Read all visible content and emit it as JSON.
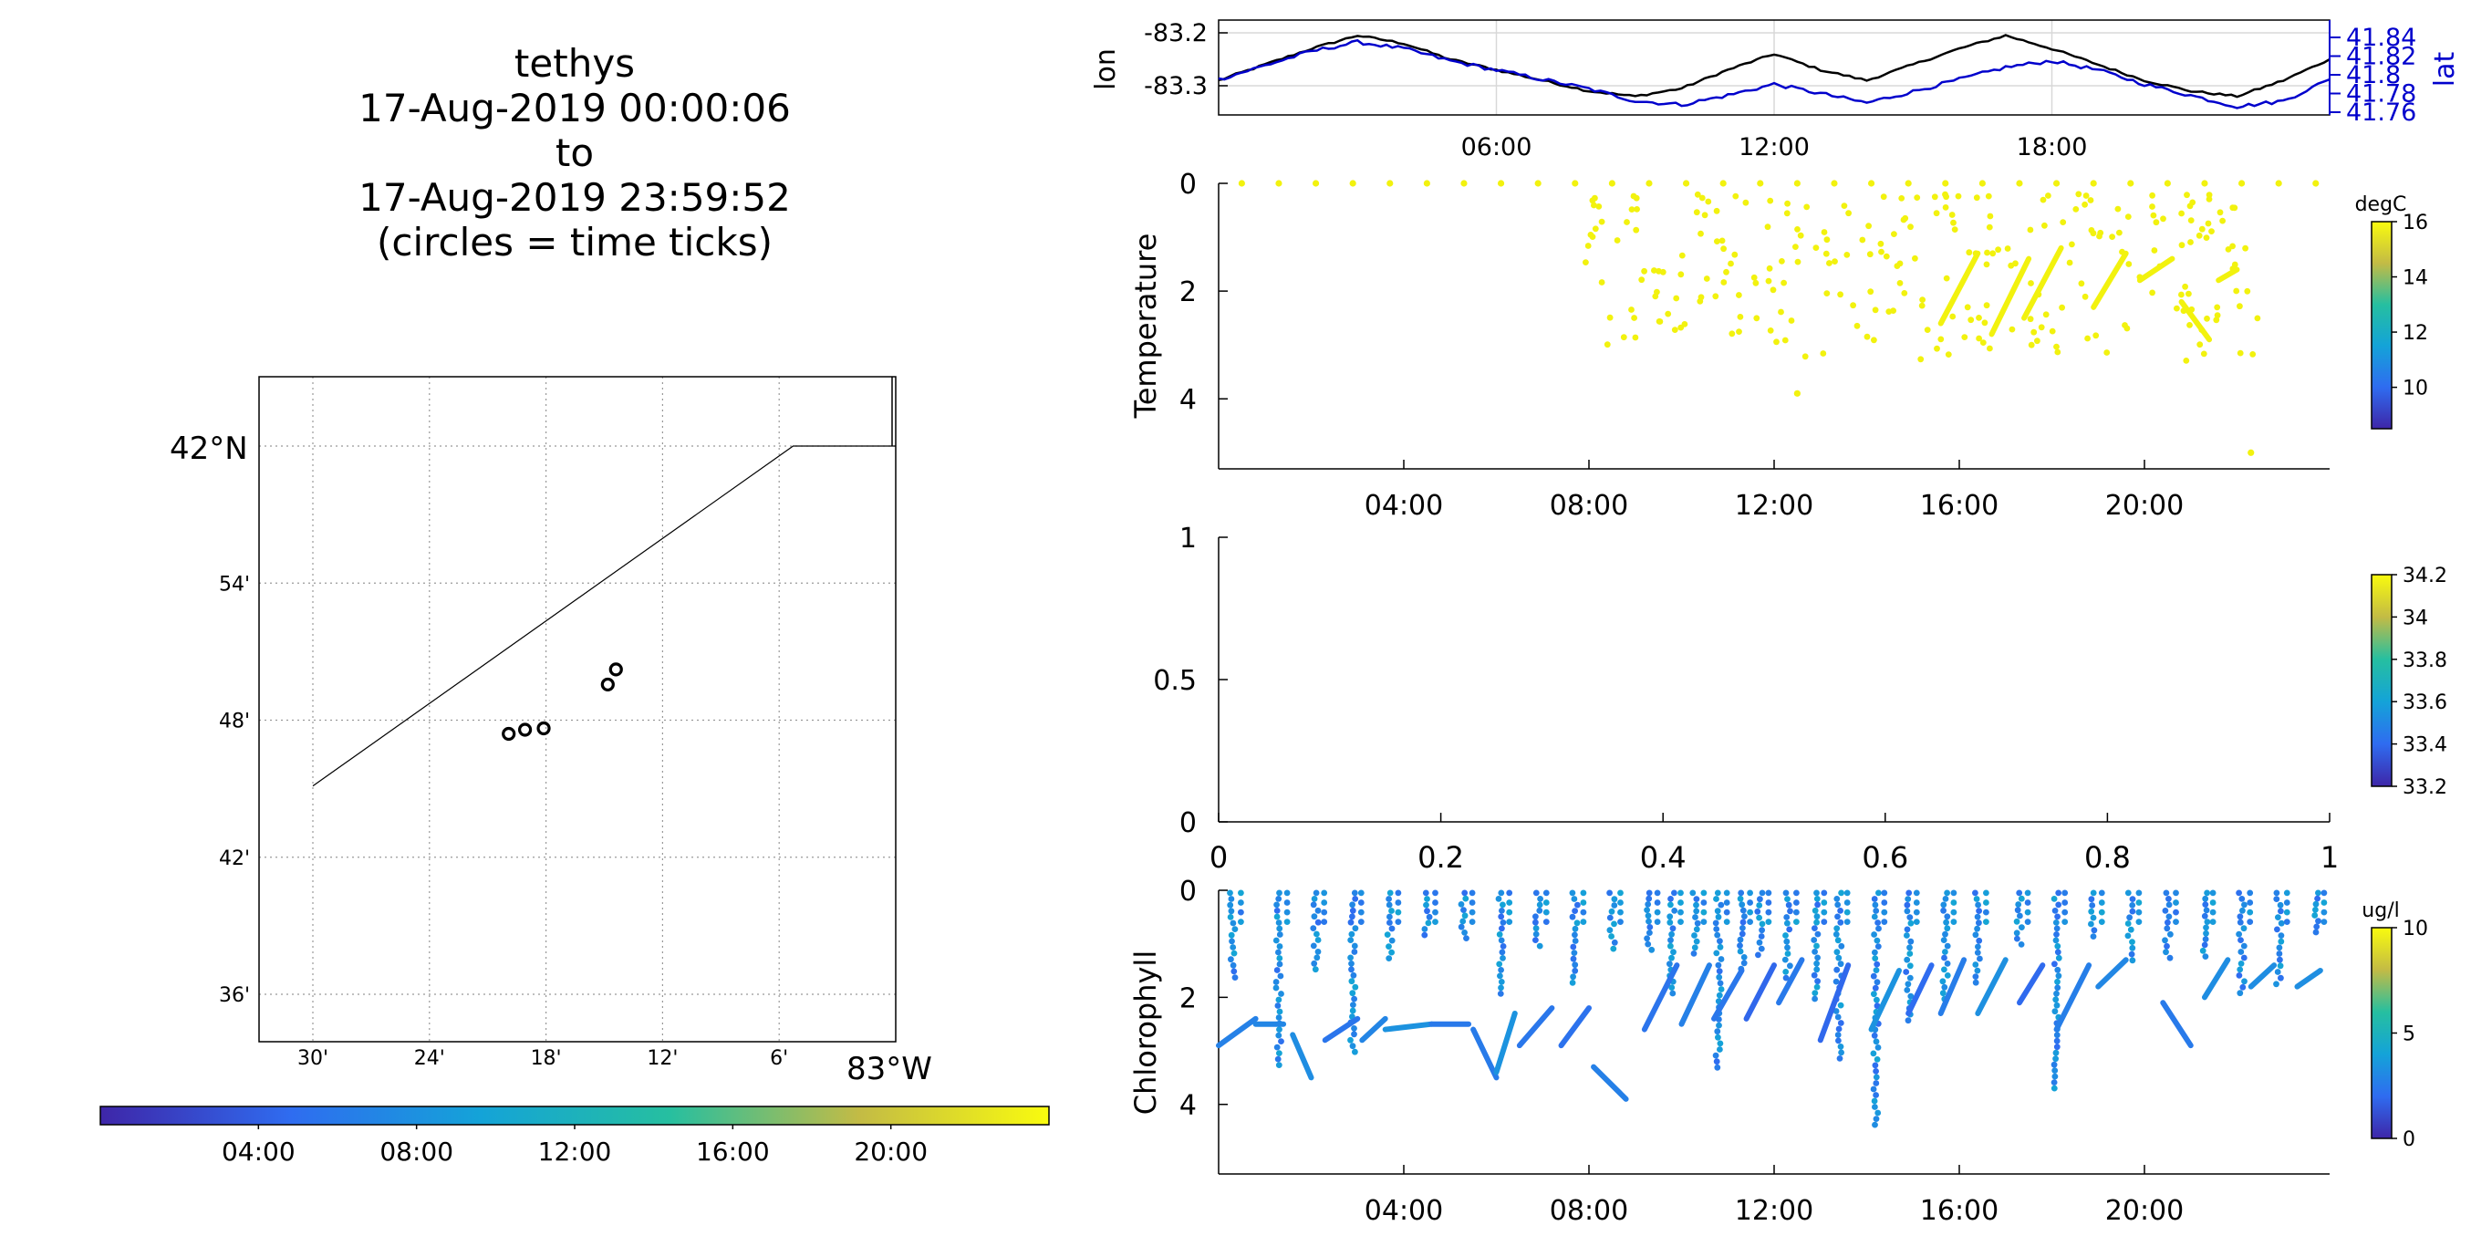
{
  "title_lines": [
    "tethys",
    "17-Aug-2019 00:00:06",
    "to",
    "17-Aug-2019 23:59:52",
    "(circles = time ticks)"
  ],
  "colors": {
    "lon": "#000000",
    "lat": "#0000cc",
    "axis": "#000000",
    "grid": "#d8d8d8"
  },
  "chart_data": [
    {
      "type": "line",
      "panel": "lon-lat",
      "x": [
        "00:00",
        "01:00",
        "02:00",
        "03:00",
        "04:00",
        "05:00",
        "06:00",
        "07:00",
        "08:00",
        "09:00",
        "10:00",
        "11:00",
        "12:00",
        "13:00",
        "14:00",
        "15:00",
        "16:00",
        "17:00",
        "18:00",
        "19:00",
        "20:00",
        "21:00",
        "22:00",
        "23:00",
        "24:00"
      ],
      "series": [
        {
          "name": "lon",
          "axis": "left",
          "values": [
            -83.29,
            -83.26,
            -83.23,
            -83.205,
            -83.22,
            -83.25,
            -83.27,
            -83.29,
            -83.31,
            -83.32,
            -83.305,
            -83.27,
            -83.24,
            -83.27,
            -83.29,
            -83.26,
            -83.23,
            -83.205,
            -83.23,
            -83.26,
            -83.29,
            -83.31,
            -83.32,
            -83.29,
            -83.25
          ]
        },
        {
          "name": "lat",
          "axis": "right",
          "values": [
            41.795,
            41.81,
            41.825,
            41.835,
            41.828,
            41.815,
            41.805,
            41.795,
            41.785,
            41.772,
            41.768,
            41.778,
            41.79,
            41.78,
            41.77,
            41.782,
            41.795,
            41.808,
            41.815,
            41.805,
            41.79,
            41.778,
            41.766,
            41.772,
            41.795
          ]
        }
      ],
      "ylabel": "lon",
      "ylabel_right": "lat",
      "yticks": [
        "-83.2",
        "-83.3"
      ],
      "yticks_right": [
        "41.84",
        "41.82",
        "41.8",
        "41.78",
        "41.76"
      ],
      "xticks": [
        "06:00",
        "12:00",
        "18:00"
      ],
      "grid": true
    },
    {
      "type": "scatter",
      "panel": "temperature",
      "ylabel": "Temperature",
      "yticks": [
        "0",
        "2",
        "4"
      ],
      "ylim": [
        0,
        5.3
      ],
      "y_reversed": true,
      "xticks": [
        "04:00",
        "08:00",
        "12:00",
        "16:00",
        "20:00"
      ],
      "colorbar": {
        "label": "degC",
        "ticks": [
          "16",
          "14",
          "12",
          "10"
        ],
        "range": [
          8.5,
          16
        ]
      },
      "surface_points_x_hours": [
        0.5,
        1.3,
        2.1,
        2.9,
        3.7,
        4.5,
        5.3,
        6.1,
        6.9,
        7.7,
        8.5,
        9.3,
        10.1,
        10.9,
        11.7,
        12.5,
        13.3,
        14.1,
        14.9,
        15.7,
        16.5,
        17.3,
        18.1,
        18.9,
        19.7,
        20.5,
        21.3,
        22.1,
        22.9,
        23.7
      ],
      "deep_scatter_x_range": [
        7.9,
        22.5
      ],
      "deep_scatter_y_range": [
        0.2,
        3.3
      ],
      "outliers": [
        {
          "x": 12.5,
          "y": 3.9
        },
        {
          "x": 22.3,
          "y": 5.0
        }
      ],
      "profile_segments": [
        {
          "x0": 15.6,
          "y0": 2.6,
          "x1": 16.4,
          "y1": 1.3
        },
        {
          "x0": 16.7,
          "y0": 2.8,
          "x1": 17.5,
          "y1": 1.4
        },
        {
          "x0": 17.4,
          "y0": 2.5,
          "x1": 18.2,
          "y1": 1.2
        },
        {
          "x0": 18.9,
          "y0": 2.3,
          "x1": 19.6,
          "y1": 1.3
        },
        {
          "x0": 19.9,
          "y0": 1.8,
          "x1": 20.6,
          "y1": 1.4
        },
        {
          "x0": 20.8,
          "y0": 2.2,
          "x1": 21.4,
          "y1": 2.9
        },
        {
          "x0": 21.6,
          "y0": 1.8,
          "x1": 22.0,
          "y1": 1.6
        }
      ]
    },
    {
      "type": "scatter",
      "panel": "salinity",
      "xlim": [
        0,
        1
      ],
      "ylim": [
        0,
        1
      ],
      "xticks": [
        "0",
        "0.2",
        "0.4",
        "0.6",
        "0.8",
        "1"
      ],
      "yticks": [
        "1",
        "0.5",
        "0"
      ],
      "colorbar": {
        "ticks": [
          "34.2",
          "34",
          "33.8",
          "33.6",
          "33.4",
          "33.2"
        ],
        "range": [
          33.2,
          34.2
        ]
      }
    },
    {
      "type": "scatter",
      "panel": "chlorophyll",
      "ylabel": "Chlorophyll",
      "yticks": [
        "0",
        "2",
        "4"
      ],
      "ylim": [
        0,
        5.3
      ],
      "y_reversed": true,
      "xticks": [
        "04:00",
        "08:00",
        "12:00",
        "16:00",
        "20:00"
      ],
      "colorbar": {
        "label": "ug/l",
        "ticks": [
          "10",
          "5",
          "0"
        ],
        "range": [
          0,
          10
        ]
      },
      "profile_x_hours": [
        0.3,
        1.3,
        2.1,
        2.9,
        3.7,
        4.5,
        5.3,
        6.1,
        6.9,
        7.7,
        8.5,
        9.3,
        9.8,
        10.3,
        10.8,
        11.3,
        11.7,
        12.3,
        12.9,
        13.4,
        14.2,
        14.9,
        15.7,
        16.4,
        17.3,
        18.1,
        18.9,
        19.7,
        20.5,
        21.3,
        22.1,
        22.9,
        23.7
      ],
      "profile_segments": [
        {
          "x0": 0.0,
          "y0": 2.9,
          "x1": 0.8,
          "y1": 2.4
        },
        {
          "x0": 0.8,
          "y0": 2.5,
          "x1": 1.4,
          "y1": 2.5
        },
        {
          "x0": 1.6,
          "y0": 2.7,
          "x1": 2.0,
          "y1": 3.5
        },
        {
          "x0": 2.3,
          "y0": 2.8,
          "x1": 3.0,
          "y1": 2.4
        },
        {
          "x0": 3.1,
          "y0": 2.8,
          "x1": 3.6,
          "y1": 2.4
        },
        {
          "x0": 3.6,
          "y0": 2.6,
          "x1": 4.6,
          "y1": 2.5
        },
        {
          "x0": 4.6,
          "y0": 2.5,
          "x1": 5.4,
          "y1": 2.5
        },
        {
          "x0": 5.5,
          "y0": 2.6,
          "x1": 6.0,
          "y1": 3.5
        },
        {
          "x0": 6.0,
          "y0": 3.4,
          "x1": 6.4,
          "y1": 2.3
        },
        {
          "x0": 6.5,
          "y0": 2.9,
          "x1": 7.2,
          "y1": 2.2
        },
        {
          "x0": 7.4,
          "y0": 2.9,
          "x1": 8.0,
          "y1": 2.2
        },
        {
          "x0": 8.1,
          "y0": 3.3,
          "x1": 8.8,
          "y1": 3.9
        },
        {
          "x0": 9.2,
          "y0": 2.6,
          "x1": 9.9,
          "y1": 1.4
        },
        {
          "x0": 10.0,
          "y0": 2.5,
          "x1": 10.6,
          "y1": 1.4
        },
        {
          "x0": 10.7,
          "y0": 2.4,
          "x1": 11.3,
          "y1": 1.5
        },
        {
          "x0": 11.4,
          "y0": 2.4,
          "x1": 12.0,
          "y1": 1.4
        },
        {
          "x0": 12.1,
          "y0": 2.1,
          "x1": 12.6,
          "y1": 1.3
        },
        {
          "x0": 13.0,
          "y0": 2.8,
          "x1": 13.6,
          "y1": 1.4
        },
        {
          "x0": 14.1,
          "y0": 2.6,
          "x1": 14.7,
          "y1": 1.5
        },
        {
          "x0": 14.9,
          "y0": 2.3,
          "x1": 15.4,
          "y1": 1.4
        },
        {
          "x0": 15.6,
          "y0": 2.3,
          "x1": 16.1,
          "y1": 1.3
        },
        {
          "x0": 16.4,
          "y0": 2.3,
          "x1": 17.0,
          "y1": 1.3
        },
        {
          "x0": 17.3,
          "y0": 2.1,
          "x1": 17.8,
          "y1": 1.4
        },
        {
          "x0": 18.1,
          "y0": 2.6,
          "x1": 18.8,
          "y1": 1.4
        },
        {
          "x0": 19.0,
          "y0": 1.8,
          "x1": 19.6,
          "y1": 1.3
        },
        {
          "x0": 20.4,
          "y0": 2.1,
          "x1": 21.0,
          "y1": 2.9
        },
        {
          "x0": 21.3,
          "y0": 2.0,
          "x1": 21.8,
          "y1": 1.3
        },
        {
          "x0": 22.3,
          "y0": 1.8,
          "x1": 22.8,
          "y1": 1.4
        },
        {
          "x0": 23.3,
          "y0": 1.8,
          "x1": 23.8,
          "y1": 1.5
        }
      ]
    },
    {
      "type": "scatter",
      "panel": "map",
      "xticks": [
        "30'",
        "24'",
        "18'",
        "12'",
        "6'"
      ],
      "x_label": "83°W",
      "yticks": [
        "54'",
        "48'",
        "42'",
        "36'"
      ],
      "y_label": "42°N",
      "x_minutes_west": [
        30,
        24,
        18,
        12,
        6
      ],
      "y_minutes_north": [
        54,
        48,
        42,
        36
      ],
      "track_circles": [
        {
          "lon": -83.332,
          "lat": 41.79
        },
        {
          "lon": -83.318,
          "lat": 41.793
        },
        {
          "lon": -83.302,
          "lat": 41.794
        },
        {
          "lon": -83.247,
          "lat": 41.826
        },
        {
          "lon": -83.24,
          "lat": 41.837
        }
      ],
      "shoreline": [
        {
          "lon": -83.5,
          "lat": 41.752
        },
        {
          "lon": -83.088,
          "lat": 42.0
        },
        {
          "lon": -83.0,
          "lat": 42.0
        }
      ]
    },
    {
      "type": "heatmap",
      "panel": "time-colorbar",
      "orientation": "horizontal",
      "xticks": [
        "04:00",
        "08:00",
        "12:00",
        "16:00",
        "20:00"
      ],
      "range_hours": [
        0,
        24
      ]
    }
  ]
}
